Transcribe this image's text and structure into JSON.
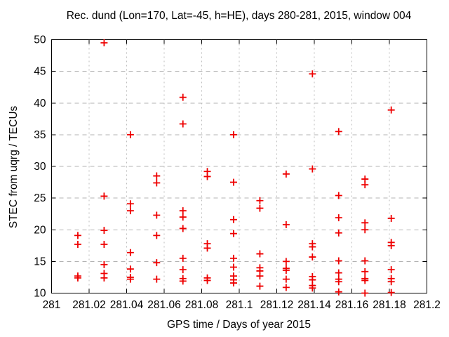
{
  "window": {
    "background": "#ffffff"
  },
  "chart_data": {
    "type": "scatter",
    "title": "Rec. dund (Lon=170, Lat=-45, h=HE), days 280-281, 2015, window 004",
    "xlabel": "GPS time / Days of year 2015",
    "ylabel": "STEC from uqrg / TECUs",
    "xlim": [
      281,
      281.2
    ],
    "ylim": [
      10,
      50
    ],
    "grid": true,
    "legend": "none",
    "x_ticks": {
      "values": [
        281,
        281.02,
        281.04,
        281.06,
        281.08,
        281.1,
        281.12,
        281.14,
        281.16,
        281.18,
        281.2
      ],
      "labels": [
        "281",
        "281.02",
        "281.04",
        "281.06",
        "281.08",
        "281.1",
        "281.12",
        "281.14",
        "281.16",
        "281.18",
        "281.2"
      ]
    },
    "y_ticks": {
      "values": [
        10,
        15,
        20,
        25,
        30,
        35,
        40,
        45,
        50
      ],
      "labels": [
        "10",
        "15",
        "20",
        "25",
        "30",
        "35",
        "40",
        "45",
        "50"
      ]
    },
    "marker": {
      "shape": "plus",
      "color": "#ee0000",
      "size": 10
    },
    "colors": {
      "axis": "#000000",
      "grid_major_y": "#b3b3b3",
      "grid_major_x": "#bdbdbd",
      "background": "#ffffff"
    },
    "series": [
      {
        "name": "STEC from uqrg",
        "points": [
          [
            281.014,
            19.1
          ],
          [
            281.014,
            17.7
          ],
          [
            281.014,
            12.7
          ],
          [
            281.014,
            12.4
          ],
          [
            281.028,
            49.5
          ],
          [
            281.028,
            25.3
          ],
          [
            281.028,
            19.9
          ],
          [
            281.028,
            17.7
          ],
          [
            281.028,
            14.5
          ],
          [
            281.028,
            13.1
          ],
          [
            281.028,
            12.4
          ],
          [
            281.042,
            35.0
          ],
          [
            281.042,
            24.1
          ],
          [
            281.042,
            23.0
          ],
          [
            281.042,
            16.4
          ],
          [
            281.042,
            13.8
          ],
          [
            281.042,
            12.5
          ],
          [
            281.042,
            12.2
          ],
          [
            281.056,
            28.5
          ],
          [
            281.056,
            27.4
          ],
          [
            281.056,
            22.3
          ],
          [
            281.056,
            19.1
          ],
          [
            281.056,
            14.8
          ],
          [
            281.056,
            12.2
          ],
          [
            281.07,
            40.9
          ],
          [
            281.07,
            36.7
          ],
          [
            281.07,
            23.0
          ],
          [
            281.07,
            22.0
          ],
          [
            281.07,
            20.2
          ],
          [
            281.07,
            15.5
          ],
          [
            281.07,
            13.7
          ],
          [
            281.07,
            12.3
          ],
          [
            281.07,
            11.9
          ],
          [
            281.083,
            29.2
          ],
          [
            281.083,
            28.4
          ],
          [
            281.083,
            17.8
          ],
          [
            281.083,
            17.1
          ],
          [
            281.083,
            12.4
          ],
          [
            281.083,
            12.0
          ],
          [
            281.097,
            35.0
          ],
          [
            281.097,
            27.5
          ],
          [
            281.097,
            21.6
          ],
          [
            281.097,
            19.4
          ],
          [
            281.097,
            15.5
          ],
          [
            281.097,
            14.1
          ],
          [
            281.097,
            12.7
          ],
          [
            281.097,
            12.1
          ],
          [
            281.097,
            11.6
          ],
          [
            281.111,
            24.6
          ],
          [
            281.111,
            23.4
          ],
          [
            281.111,
            16.2
          ],
          [
            281.111,
            14.0
          ],
          [
            281.111,
            13.5
          ],
          [
            281.111,
            12.7
          ],
          [
            281.111,
            11.1
          ],
          [
            281.125,
            28.8
          ],
          [
            281.125,
            20.8
          ],
          [
            281.125,
            15.0
          ],
          [
            281.125,
            13.9
          ],
          [
            281.125,
            13.6
          ],
          [
            281.125,
            12.2
          ],
          [
            281.125,
            10.9
          ],
          [
            281.139,
            44.6
          ],
          [
            281.139,
            29.6
          ],
          [
            281.139,
            17.8
          ],
          [
            281.139,
            17.3
          ],
          [
            281.139,
            15.7
          ],
          [
            281.139,
            12.6
          ],
          [
            281.139,
            12.1
          ],
          [
            281.139,
            11.2
          ],
          [
            281.139,
            10.8
          ],
          [
            281.153,
            35.5
          ],
          [
            281.153,
            25.4
          ],
          [
            281.153,
            21.9
          ],
          [
            281.153,
            19.5
          ],
          [
            281.153,
            15.1
          ],
          [
            281.153,
            13.2
          ],
          [
            281.153,
            12.2
          ],
          [
            281.153,
            11.8
          ],
          [
            281.153,
            10.2
          ],
          [
            281.167,
            28.0
          ],
          [
            281.167,
            27.1
          ],
          [
            281.167,
            21.1
          ],
          [
            281.167,
            20.0
          ],
          [
            281.167,
            15.1
          ],
          [
            281.167,
            13.4
          ],
          [
            281.167,
            12.3
          ],
          [
            281.167,
            12.0
          ],
          [
            281.167,
            10.0
          ],
          [
            281.181,
            38.9
          ],
          [
            281.181,
            21.8
          ],
          [
            281.181,
            18.0
          ],
          [
            281.181,
            17.5
          ],
          [
            281.181,
            13.7
          ],
          [
            281.181,
            12.3
          ],
          [
            281.181,
            11.8
          ],
          [
            281.181,
            10.1
          ]
        ]
      }
    ]
  }
}
